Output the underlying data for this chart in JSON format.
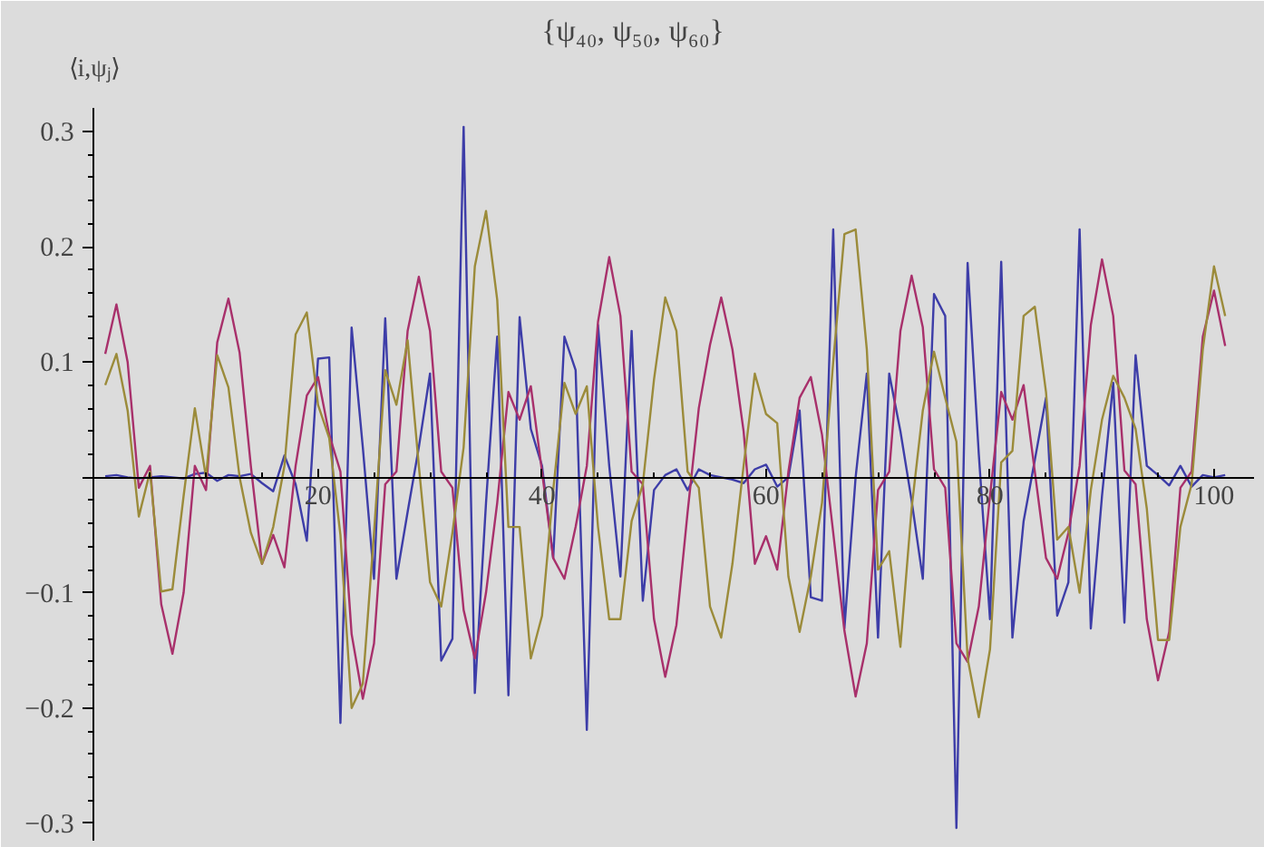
{
  "chart_data": {
    "type": "line",
    "title": "{ψ₄₀, ψ₅₀, ψ₆₀}",
    "ylabel": "⟨i,ψⱼ⟩",
    "x": [
      1,
      2,
      3,
      4,
      5,
      6,
      7,
      8,
      9,
      10,
      11,
      12,
      13,
      14,
      15,
      16,
      17,
      18,
      19,
      20,
      21,
      22,
      23,
      24,
      25,
      26,
      27,
      28,
      29,
      30,
      31,
      32,
      33,
      34,
      35,
      36,
      37,
      38,
      39,
      40,
      41,
      42,
      43,
      44,
      45,
      46,
      47,
      48,
      49,
      50,
      51,
      52,
      53,
      54,
      55,
      56,
      57,
      58,
      59,
      60,
      61,
      62,
      63,
      64,
      65,
      66,
      67,
      68,
      69,
      70,
      71,
      72,
      73,
      74,
      75,
      76,
      77,
      78,
      79,
      80,
      81,
      82,
      83,
      84,
      85,
      86,
      87,
      88,
      89,
      90,
      91,
      92,
      93,
      94,
      95,
      96,
      97,
      98,
      99,
      100,
      101
    ],
    "series": [
      {
        "color": "#3d3da8",
        "values": [
          0.001,
          0.002,
          0,
          -0.001,
          0,
          0.001,
          0,
          -0.001,
          0.003,
          0.004,
          -0.003,
          0.002,
          0.001,
          0.003,
          -0.005,
          -0.012,
          0.019,
          -0.006,
          -0.055,
          0.103,
          0.104,
          -0.213,
          0.13,
          0.026,
          -0.088,
          0.138,
          -0.088,
          -0.03,
          0.026,
          0.09,
          -0.159,
          -0.14,
          0.304,
          -0.187,
          -0.022,
          0.122,
          -0.189,
          0.139,
          0.042,
          0.01,
          -0.07,
          0.122,
          0.093,
          -0.219,
          0.132,
          0.01,
          -0.086,
          0.127,
          -0.107,
          -0.011,
          0.002,
          0.007,
          -0.011,
          0.007,
          0.002,
          0,
          -0.002,
          -0.005,
          0.007,
          0.011,
          -0.008,
          0,
          0.058,
          -0.104,
          -0.107,
          0.215,
          -0.131,
          0,
          0.09,
          -0.139,
          0.09,
          0.04,
          -0.02,
          -0.088,
          0.159,
          0.14,
          -0.304,
          0.186,
          0.02,
          -0.123,
          0.187,
          -0.139,
          -0.038,
          0.015,
          0.069,
          -0.12,
          -0.091,
          0.215,
          -0.131,
          -0.016,
          0.082,
          -0.126,
          0.106,
          0.01,
          0.002,
          -0.007,
          0.01,
          -0.008,
          0.002,
          0,
          0.002
        ]
      },
      {
        "color": "#a8306b",
        "values": [
          0.107,
          0.15,
          0.1,
          -0.009,
          0.01,
          -0.11,
          -0.153,
          -0.1,
          0.01,
          -0.011,
          0.117,
          0.155,
          0.108,
          0.01,
          -0.075,
          -0.05,
          -0.078,
          0.01,
          0.071,
          0.087,
          0.037,
          0.005,
          -0.136,
          -0.192,
          -0.144,
          -0.006,
          0.005,
          0.127,
          0.174,
          0.127,
          0.005,
          -0.009,
          -0.115,
          -0.157,
          -0.1,
          -0.022,
          0.074,
          0.05,
          0.079,
          0.005,
          -0.07,
          -0.088,
          -0.043,
          0.01,
          0.135,
          0.191,
          0.14,
          0.005,
          -0.006,
          -0.123,
          -0.173,
          -0.128,
          -0.03,
          0.06,
          0.115,
          0.156,
          0.111,
          0.04,
          -0.075,
          -0.051,
          -0.08,
          0.005,
          0.069,
          0.087,
          0.037,
          -0.048,
          -0.133,
          -0.19,
          -0.144,
          -0.011,
          0.005,
          0.127,
          0.175,
          0.13,
          0.007,
          -0.009,
          -0.144,
          -0.16,
          -0.112,
          -0.016,
          0.074,
          0.05,
          0.08,
          0.005,
          -0.07,
          -0.088,
          -0.048,
          0.01,
          0.132,
          0.189,
          0.14,
          0.006,
          -0.006,
          -0.123,
          -0.176,
          -0.134,
          -0.009,
          0.005,
          0.122,
          0.162,
          0.114
        ]
      },
      {
        "color": "#9b8b3a",
        "values": [
          0.08,
          0.107,
          0.058,
          -0.034,
          0.005,
          -0.099,
          -0.097,
          -0.016,
          0.06,
          0,
          0.106,
          0.078,
          0,
          -0.048,
          -0.075,
          -0.043,
          0.01,
          0.124,
          0.143,
          0.063,
          0.034,
          -0.05,
          -0.2,
          -0.179,
          -0.048,
          0.093,
          0.063,
          0.119,
          0.01,
          -0.091,
          -0.112,
          -0.048,
          0.026,
          0.183,
          0.231,
          0.154,
          -0.043,
          -0.043,
          -0.157,
          -0.12,
          -0.011,
          0.082,
          0.055,
          0.079,
          -0.043,
          -0.123,
          -0.123,
          -0.038,
          -0.006,
          0.085,
          0.156,
          0.127,
          0.005,
          -0.009,
          -0.112,
          -0.139,
          -0.075,
          0.01,
          0.09,
          0.055,
          0.047,
          -0.086,
          -0.134,
          -0.086,
          -0.022,
          0.1,
          0.211,
          0.215,
          0.111,
          -0.08,
          -0.064,
          -0.147,
          -0.027,
          0.058,
          0.109,
          0.069,
          0.031,
          -0.157,
          -0.208,
          -0.149,
          0.013,
          0.023,
          0.14,
          0.148,
          0.074,
          -0.054,
          -0.043,
          -0.1,
          -0.011,
          0.05,
          0.088,
          0.069,
          0.042,
          -0.027,
          -0.141,
          -0.141,
          -0.043,
          -0.006,
          0.111,
          0.183,
          0.14
        ]
      }
    ],
    "xlim": [
      -1,
      103.5
    ],
    "ylim": [
      -0.315,
      0.32
    ],
    "xticks": [
      {
        "value": 5,
        "label": null
      },
      {
        "value": 10,
        "label": null
      },
      {
        "value": 15,
        "label": null
      },
      20,
      {
        "value": 25,
        "label": null
      },
      {
        "value": 30,
        "label": null
      },
      {
        "value": 35,
        "label": null
      },
      40,
      {
        "value": 45,
        "label": null
      },
      {
        "value": 50,
        "label": null
      },
      {
        "value": 55,
        "label": null
      },
      60,
      {
        "value": 65,
        "label": null
      },
      {
        "value": 70,
        "label": null
      },
      {
        "value": 75,
        "label": null
      },
      80,
      {
        "value": 85,
        "label": null
      },
      {
        "value": 90,
        "label": null
      },
      {
        "value": 95,
        "label": null
      },
      100
    ],
    "yticks": [
      -0.3,
      {
        "value": -0.28,
        "label": null
      },
      {
        "value": -0.26,
        "label": null
      },
      {
        "value": -0.24,
        "label": null
      },
      {
        "value": -0.22,
        "label": null
      },
      -0.2,
      {
        "value": -0.18,
        "label": null
      },
      {
        "value": -0.16,
        "label": null
      },
      {
        "value": -0.14,
        "label": null
      },
      {
        "value": -0.12,
        "label": null
      },
      -0.1,
      {
        "value": -0.08,
        "label": null
      },
      {
        "value": -0.06,
        "label": null
      },
      {
        "value": -0.04,
        "label": null
      },
      {
        "value": -0.02,
        "label": null
      },
      {
        "value": 0.02,
        "label": null
      },
      {
        "value": 0.04,
        "label": null
      },
      {
        "value": 0.06,
        "label": null
      },
      {
        "value": 0.08,
        "label": null
      },
      0.1,
      {
        "value": 0.12,
        "label": null
      },
      {
        "value": 0.14,
        "label": null
      },
      {
        "value": 0.16,
        "label": null
      },
      {
        "value": 0.18,
        "label": null
      },
      0.2,
      {
        "value": 0.22,
        "label": null
      },
      {
        "value": 0.24,
        "label": null
      },
      {
        "value": 0.26,
        "label": null
      },
      {
        "value": 0.28,
        "label": null
      },
      0.3
    ],
    "grid": false,
    "marker": "none",
    "line_style": "solid"
  }
}
